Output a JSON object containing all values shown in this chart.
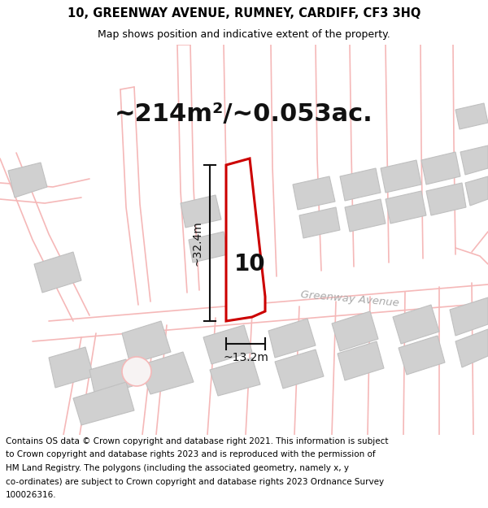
{
  "title": "10, GREENWAY AVENUE, RUMNEY, CARDIFF, CF3 3HQ",
  "subtitle": "Map shows position and indicative extent of the property.",
  "area_text": "~214m²/~0.053ac.",
  "property_number": "10",
  "dim_vertical": "~32.4m",
  "dim_horizontal": "~13.2m",
  "street_label": "Greenway Avenue",
  "footer_text": "Contains OS data © Crown copyright and database right 2021. This information is subject to Crown copyright and database rights 2023 and is reproduced with the permission of HM Land Registry. The polygons (including the associated geometry, namely x, y co-ordinates) are subject to Crown copyright and database rights 2023 Ordnance Survey 100026316.",
  "map_bg": "#f7f3f3",
  "road_color": "#f5b8b8",
  "road_fill": "#f0e8e8",
  "building_color": "#d0d0d0",
  "building_edge": "#c0c0c0",
  "property_color": "#ffffff",
  "property_edge": "#cc0000",
  "dim_color": "#111111",
  "street_color": "#aaaaaa",
  "title_fontsize": 10.5,
  "subtitle_fontsize": 9,
  "area_fontsize": 22,
  "num_fontsize": 20,
  "dim_fontsize": 10,
  "street_fontsize": 9.5,
  "footer_fontsize": 7.5
}
